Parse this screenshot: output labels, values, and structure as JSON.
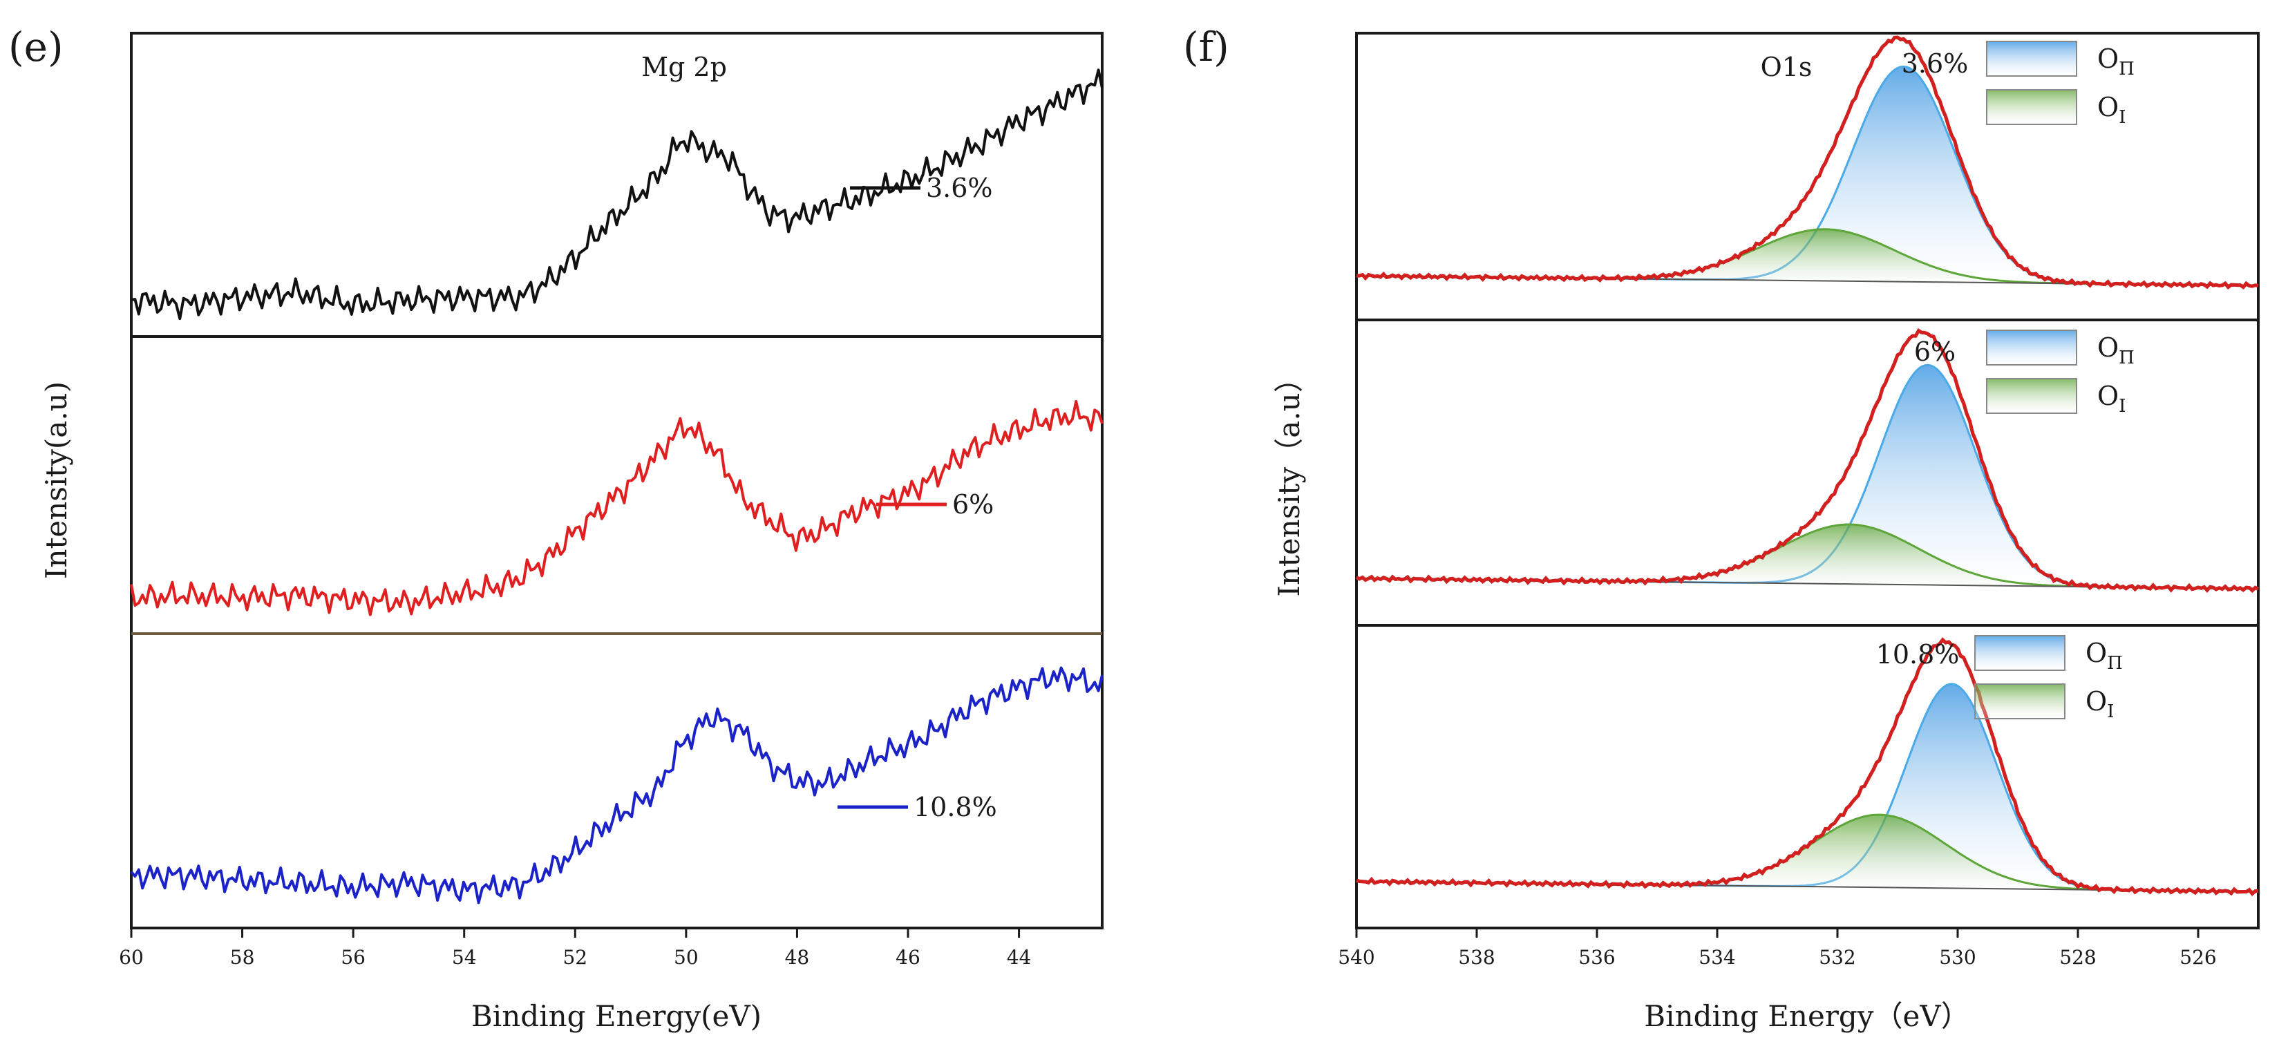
{
  "chart_data": [
    {
      "panel": "(e)",
      "type": "line",
      "title": "Mg 2p",
      "xlabel": "Binding Energy(eV)",
      "ylabel": "Intensity(a.u)",
      "xlim": [
        60,
        42.5
      ],
      "x_ticks": [
        60,
        58,
        56,
        54,
        52,
        50,
        48,
        46,
        44
      ],
      "x_tick_labels": [
        "60",
        "58",
        "56",
        "54",
        "52",
        "50",
        "48",
        "46",
        "44"
      ],
      "stacked": true,
      "series": [
        {
          "name": "3.6%",
          "color": "#111111",
          "x": [
            60,
            59,
            58,
            57,
            56,
            55,
            54,
            53,
            52.5,
            52,
            51.5,
            51,
            50.5,
            50.2,
            50,
            49.7,
            49.5,
            49.2,
            49,
            48.7,
            48.5,
            48.2,
            48,
            47.5,
            47,
            46.5,
            46,
            45.5,
            45,
            44.5,
            44,
            43.5,
            43,
            42.5
          ],
          "y": [
            0.05,
            0.03,
            0.06,
            0.08,
            0.03,
            0.05,
            0.06,
            0.06,
            0.12,
            0.22,
            0.34,
            0.44,
            0.55,
            0.66,
            0.7,
            0.66,
            0.64,
            0.62,
            0.54,
            0.45,
            0.4,
            0.38,
            0.38,
            0.42,
            0.45,
            0.49,
            0.53,
            0.58,
            0.64,
            0.7,
            0.77,
            0.82,
            0.88,
            0.93
          ]
        },
        {
          "name": "6%",
          "color": "#e02020",
          "x": [
            60,
            59,
            58,
            57,
            56,
            55,
            54,
            53.5,
            53,
            52.5,
            52,
            51.5,
            51,
            50.5,
            50.2,
            50,
            49.8,
            49.5,
            49.2,
            49,
            48.5,
            48,
            47.5,
            47,
            46.5,
            46,
            45.5,
            45,
            44.5,
            44,
            43.5,
            43,
            42.5
          ],
          "y": [
            0.05,
            0.06,
            0.05,
            0.06,
            0.04,
            0.03,
            0.07,
            0.09,
            0.13,
            0.21,
            0.32,
            0.42,
            0.52,
            0.64,
            0.72,
            0.76,
            0.72,
            0.66,
            0.55,
            0.46,
            0.37,
            0.29,
            0.33,
            0.4,
            0.44,
            0.48,
            0.55,
            0.64,
            0.7,
            0.74,
            0.78,
            0.8,
            0.78
          ]
        },
        {
          "name": "10.8%",
          "color": "#1a22c8",
          "x": [
            60,
            59,
            58,
            57,
            56,
            55,
            54,
            53,
            52.5,
            52,
            51.5,
            51,
            50.5,
            50.2,
            50,
            49.7,
            49.5,
            49.2,
            49,
            48.7,
            48.5,
            48,
            47.5,
            47,
            46.5,
            46,
            45.5,
            45,
            44.5,
            44,
            43.5,
            43,
            42.5
          ],
          "y": [
            0.12,
            0.12,
            0.1,
            0.09,
            0.07,
            0.09,
            0.06,
            0.08,
            0.14,
            0.22,
            0.32,
            0.4,
            0.48,
            0.62,
            0.68,
            0.75,
            0.78,
            0.74,
            0.72,
            0.64,
            0.58,
            0.51,
            0.5,
            0.56,
            0.62,
            0.66,
            0.72,
            0.8,
            0.86,
            0.9,
            0.94,
            0.94,
            0.9
          ]
        }
      ]
    },
    {
      "panel": "(f)",
      "type": "line",
      "title": "O1s",
      "xlabel": "Binding Energy（eV）",
      "ylabel": "Intensity（a.u）",
      "xlim": [
        540,
        525
      ],
      "x_ticks": [
        540,
        538,
        536,
        534,
        532,
        530,
        528,
        526
      ],
      "x_tick_labels": [
        "540",
        "538",
        "536",
        "534",
        "532",
        "530",
        "528",
        "526"
      ],
      "stacked": true,
      "legend": [
        {
          "label": "O",
          "sub": "Π",
          "color": "#7cc8f0"
        },
        {
          "label": "O",
          "sub": "I",
          "color": "#7db84f"
        }
      ],
      "panels": [
        {
          "name": "3.6%",
          "envelope_color": "#d41f1f",
          "components": [
            {
              "label": "O_Π",
              "center": 530.9,
              "amp": 1.0,
              "width": 0.85
            },
            {
              "label": "O_I",
              "center": 532.2,
              "amp": 0.24,
              "width": 1.15
            }
          ]
        },
        {
          "name": "6%",
          "envelope_color": "#d41f1f",
          "components": [
            {
              "label": "O_Π",
              "center": 530.5,
              "amp": 0.96,
              "width": 0.8
            },
            {
              "label": "O_I",
              "center": 531.8,
              "amp": 0.26,
              "width": 1.15
            }
          ]
        },
        {
          "name": "10.8%",
          "envelope_color": "#d41f1f",
          "components": [
            {
              "label": "O_Π",
              "center": 530.1,
              "amp": 0.9,
              "width": 0.75
            },
            {
              "label": "O_I",
              "center": 531.3,
              "amp": 0.32,
              "width": 1.1
            }
          ]
        }
      ]
    }
  ]
}
